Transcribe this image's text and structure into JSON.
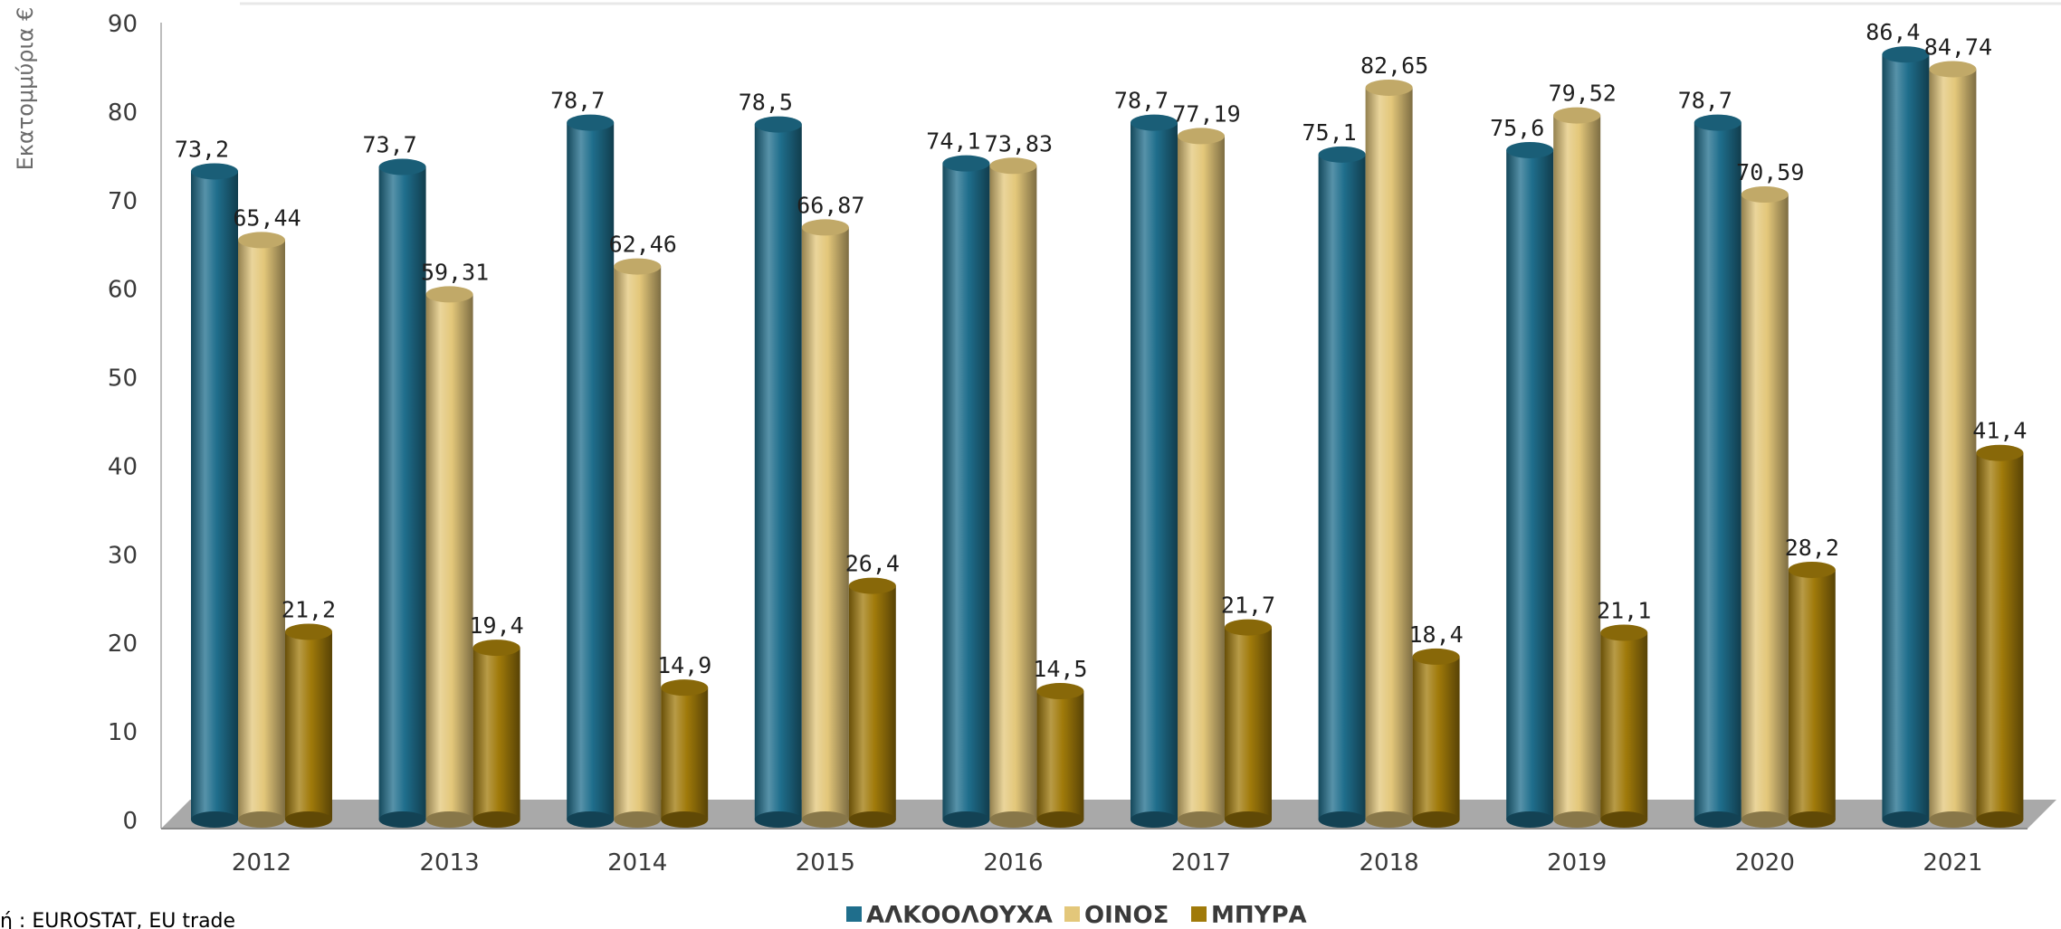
{
  "chart_data": {
    "type": "bar",
    "title": "",
    "xlabel": "",
    "ylabel": "Εκατομμύρια €",
    "ylim": [
      0,
      90
    ],
    "yticks": [
      0,
      10,
      20,
      30,
      40,
      50,
      60,
      70,
      80,
      90
    ],
    "categories": [
      "2012",
      "2013",
      "2014",
      "2015",
      "2016",
      "2017",
      "2018",
      "2019",
      "2020",
      "2021"
    ],
    "series": [
      {
        "name": "ΑΛΚΟΟΛΟΥΧΑ",
        "color": "#1f6e8c",
        "values": [
          73.2,
          73.7,
          78.7,
          78.5,
          74.1,
          78.7,
          75.1,
          75.6,
          78.7,
          86.4
        ],
        "labels": [
          "73,2",
          "73,7",
          "78,7",
          "78,5",
          "74,1",
          "78,7",
          "75,1",
          "75,6",
          "78,7",
          "86,4"
        ]
      },
      {
        "name": "ΟΙΝΟΣ",
        "color": "#e3c77a",
        "values": [
          65.44,
          59.31,
          62.46,
          66.87,
          73.83,
          77.19,
          82.65,
          79.52,
          70.59,
          84.74
        ],
        "labels": [
          "65,44",
          "59,31",
          "62,46",
          "66,87",
          "73,83",
          "77,19",
          "82,65",
          "79,52",
          "70,59",
          "84,74"
        ]
      },
      {
        "name": "ΜΠΥΡΑ",
        "color": "#a07a0a",
        "values": [
          21.2,
          19.4,
          14.9,
          26.4,
          14.5,
          21.7,
          18.4,
          21.1,
          28.2,
          41.4
        ],
        "labels": [
          "21,2",
          "19,4",
          "14,9",
          "26,4",
          "14,5",
          "21,7",
          "18,4",
          "21,1",
          "28,2",
          "41,4"
        ]
      }
    ],
    "legend_position": "bottom-center",
    "grid": false,
    "style": "3d-cylinder"
  },
  "source_note": "ή : EUROSTAT, EU trade"
}
